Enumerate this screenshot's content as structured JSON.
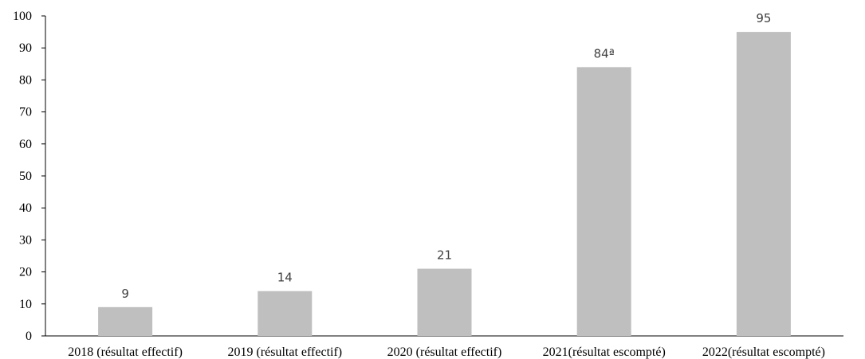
{
  "chart_data": {
    "type": "bar",
    "categories": [
      "2018 (résultat effectif)",
      "2019 (résultat effectif)",
      "2020 (résultat effectif)",
      "2021(résultat escompté)",
      "2022(résultat escompté)"
    ],
    "values": [
      9,
      14,
      21,
      84,
      95
    ],
    "data_labels": [
      "9",
      "14",
      "21",
      "84ª",
      "95"
    ],
    "title": "",
    "xlabel": "",
    "ylabel": "",
    "ylim": [
      0,
      100
    ],
    "yticks": [
      0,
      10,
      20,
      30,
      40,
      50,
      60,
      70,
      80,
      90,
      100
    ],
    "grid": false,
    "bar_color": "#bfbfbf"
  }
}
